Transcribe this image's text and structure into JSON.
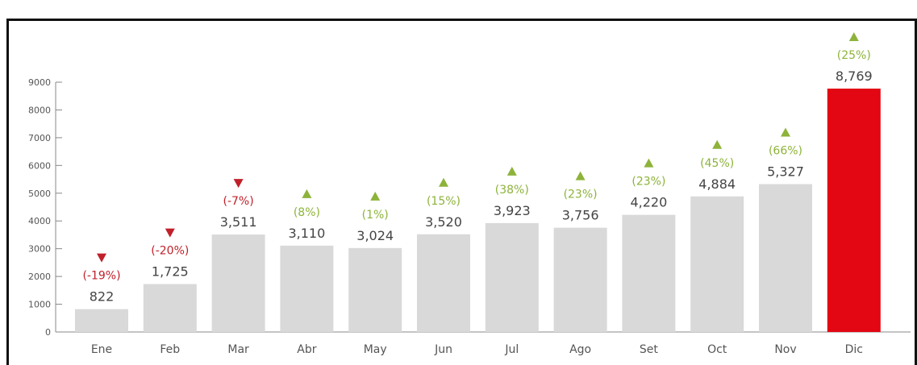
{
  "header": {
    "text": ""
  },
  "chart_data": {
    "type": "bar",
    "title": "",
    "xlabel": "",
    "ylabel": "",
    "ylim": [
      0,
      9000
    ],
    "yticks": [
      0,
      1000,
      2000,
      3000,
      4000,
      5000,
      6000,
      7000,
      8000,
      9000
    ],
    "grid": false,
    "categories": [
      "Ene",
      "Feb",
      "Mar",
      "Abr",
      "May",
      "Jun",
      "Jul",
      "Ago",
      "Set",
      "Oct",
      "Nov",
      "Dic"
    ],
    "values": [
      822,
      1725,
      3511,
      3110,
      3024,
      3520,
      3923,
      3756,
      4220,
      4884,
      5327,
      8769
    ],
    "value_labels": [
      "822",
      "1,725",
      "3,511",
      "3,110",
      "3,024",
      "3,520",
      "3,923",
      "3,756",
      "4,220",
      "4,884",
      "5,327",
      "8,769"
    ],
    "changes": [
      "(-19%)",
      "(-20%)",
      "(-7%)",
      "(8%)",
      "(1%)",
      "(15%)",
      "(38%)",
      "(23%)",
      "(23%)",
      "(45%)",
      "(66%)",
      "(25%)"
    ],
    "directions": [
      "down",
      "down",
      "down",
      "up",
      "up",
      "up",
      "up",
      "up",
      "up",
      "up",
      "up",
      "up"
    ],
    "highlight_index": 11,
    "colors": {
      "bar": "#d9d9d9",
      "highlight": "#e30613",
      "up": "#8db33a",
      "down": "#c0202a",
      "axis": "#888888"
    }
  }
}
